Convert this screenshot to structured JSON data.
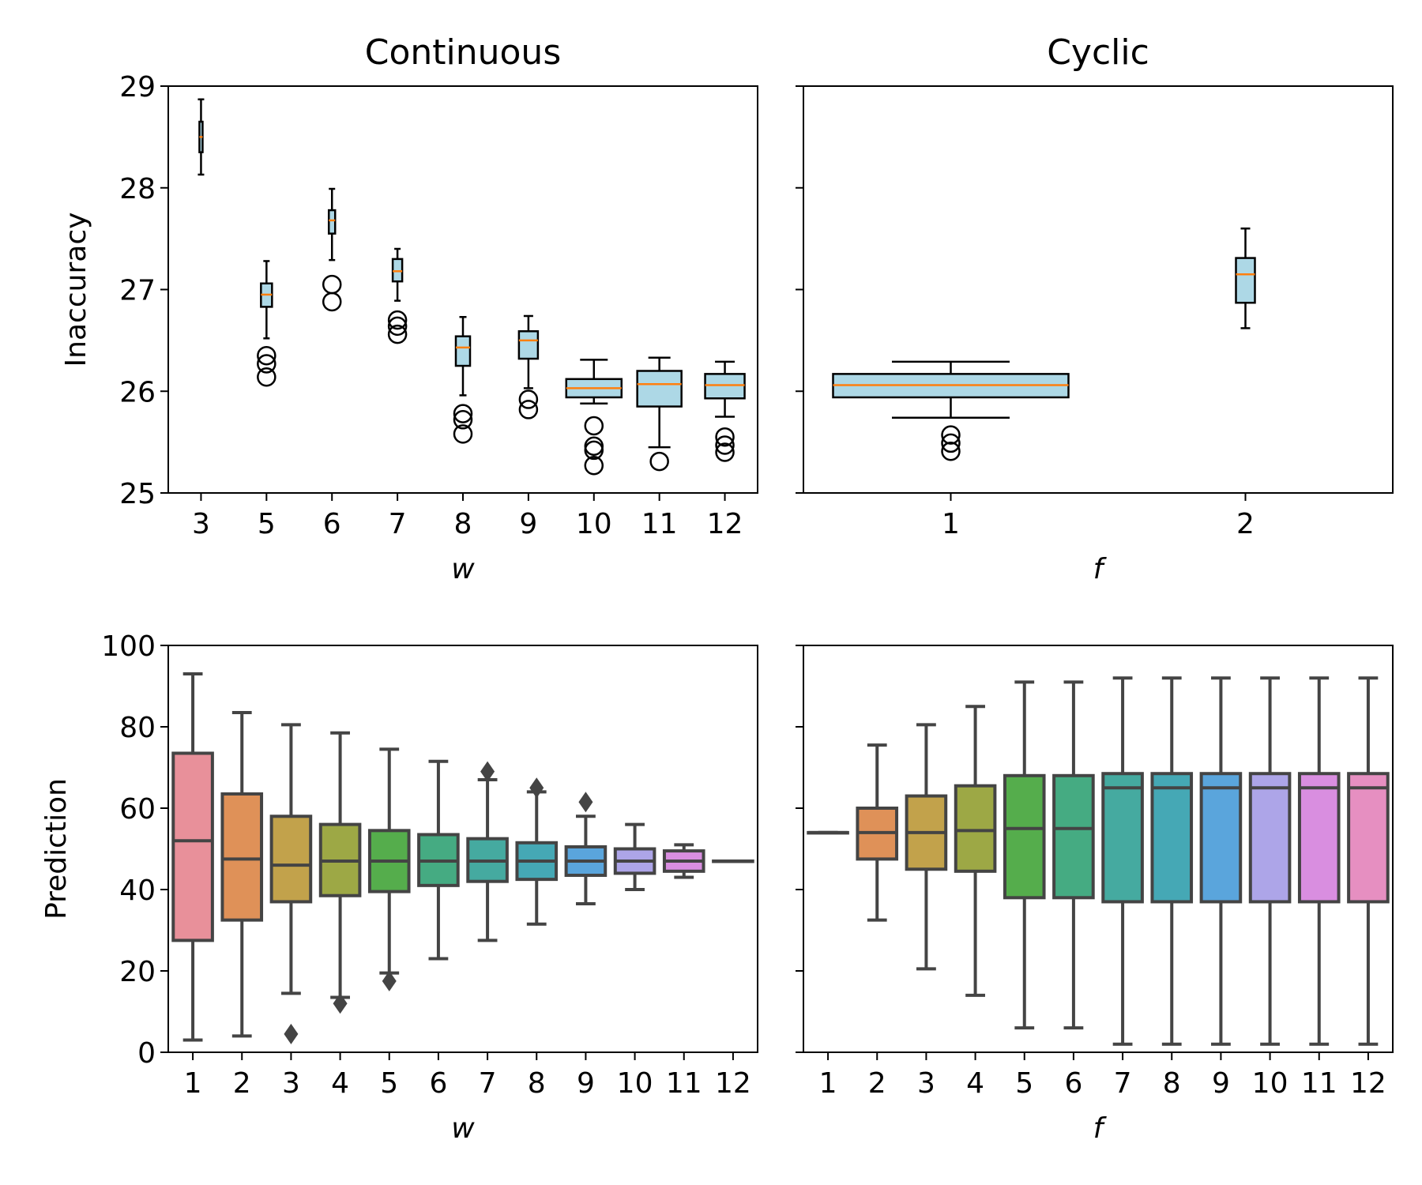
{
  "chart_data": [
    {
      "type": "box",
      "panel": "top-left",
      "title": "Continuous",
      "xlabel": "w",
      "ylabel": "Inaccuracy",
      "ylim": [
        25,
        29
      ],
      "yticks": [
        25,
        26,
        27,
        28,
        29
      ],
      "box_color": "#add8e6",
      "median_color": "#ff7f0e",
      "categories": [
        "3",
        "5",
        "6",
        "7",
        "8",
        "9",
        "10",
        "11",
        "12"
      ],
      "boxes": [
        {
          "q1": 28.35,
          "median": 28.5,
          "q3": 28.65,
          "whislo": 28.13,
          "whishi": 28.87,
          "fliers": []
        },
        {
          "q1": 26.83,
          "median": 26.95,
          "q3": 27.06,
          "whislo": 26.52,
          "whishi": 27.28,
          "fliers": [
            26.35,
            26.27,
            26.14
          ]
        },
        {
          "q1": 27.55,
          "median": 27.68,
          "q3": 27.78,
          "whislo": 27.29,
          "whishi": 27.99,
          "fliers": [
            27.05,
            26.88
          ]
        },
        {
          "q1": 27.08,
          "median": 27.18,
          "q3": 27.3,
          "whislo": 26.89,
          "whishi": 27.4,
          "fliers": [
            26.7,
            26.64,
            26.56
          ]
        },
        {
          "q1": 26.25,
          "median": 26.43,
          "q3": 26.54,
          "whislo": 25.96,
          "whishi": 26.73,
          "fliers": [
            25.78,
            25.72,
            25.58
          ]
        },
        {
          "q1": 26.32,
          "median": 26.5,
          "q3": 26.59,
          "whislo": 26.03,
          "whishi": 26.74,
          "fliers": [
            25.92,
            25.82
          ]
        },
        {
          "q1": 25.94,
          "median": 26.03,
          "q3": 26.12,
          "whislo": 25.88,
          "whishi": 26.31,
          "fliers": [
            25.66,
            25.46,
            25.42,
            25.27
          ]
        },
        {
          "q1": 25.85,
          "median": 26.07,
          "q3": 26.2,
          "whislo": 25.45,
          "whishi": 26.33,
          "fliers": [
            25.31
          ]
        },
        {
          "q1": 25.93,
          "median": 26.06,
          "q3": 26.17,
          "whislo": 25.75,
          "whishi": 26.29,
          "fliers": [
            25.55,
            25.47,
            25.4
          ]
        }
      ]
    },
    {
      "type": "box",
      "panel": "top-right",
      "title": "Cyclic",
      "xlabel": "f",
      "ylabel": "",
      "ylim": [
        25,
        29
      ],
      "yticks": [
        25,
        26,
        27,
        28,
        29
      ],
      "box_color": "#add8e6",
      "median_color": "#ff7f0e",
      "categories": [
        "1",
        "2"
      ],
      "boxes": [
        {
          "q1": 25.94,
          "median": 26.06,
          "q3": 26.17,
          "whislo": 25.74,
          "whishi": 26.29,
          "fliers": [
            25.57,
            25.49,
            25.41
          ]
        },
        {
          "q1": 26.87,
          "median": 27.15,
          "q3": 27.31,
          "whislo": 26.62,
          "whishi": 27.6,
          "fliers": []
        }
      ]
    },
    {
      "type": "box",
      "panel": "bottom-left",
      "title": "",
      "xlabel": "w",
      "ylabel": "Prediction",
      "ylim": [
        0,
        100
      ],
      "yticks": [
        0,
        20,
        40,
        60,
        80,
        100
      ],
      "line_color": "#444444",
      "categories": [
        "1",
        "2",
        "3",
        "4",
        "5",
        "6",
        "7",
        "8",
        "9",
        "10",
        "11",
        "12"
      ],
      "boxes": [
        {
          "q1": 27.5,
          "median": 52,
          "q3": 73.5,
          "whislo": 3,
          "whishi": 93,
          "fliers": [],
          "color": "#e8909a"
        },
        {
          "q1": 32.5,
          "median": 47.5,
          "q3": 63.5,
          "whislo": 4,
          "whishi": 83.5,
          "fliers": [],
          "color": "#df9158"
        },
        {
          "q1": 37,
          "median": 46,
          "q3": 58,
          "whislo": 14.5,
          "whishi": 80.5,
          "fliers": [
            4.5
          ],
          "color": "#c2a24b"
        },
        {
          "q1": 38.5,
          "median": 47,
          "q3": 56,
          "whislo": 13.5,
          "whishi": 78.5,
          "fliers": [
            12
          ],
          "color": "#9da845"
        },
        {
          "q1": 39.5,
          "median": 47,
          "q3": 54.5,
          "whislo": 19.5,
          "whishi": 74.5,
          "fliers": [
            17.5
          ],
          "color": "#55ad4c"
        },
        {
          "q1": 41,
          "median": 47,
          "q3": 53.5,
          "whislo": 23,
          "whishi": 71.5,
          "fliers": [],
          "color": "#45ab82"
        },
        {
          "q1": 42,
          "median": 47,
          "q3": 52.5,
          "whislo": 27.5,
          "whishi": 67,
          "fliers": [
            69
          ],
          "color": "#45aaa0"
        },
        {
          "q1": 42.5,
          "median": 47,
          "q3": 51.5,
          "whislo": 31.5,
          "whishi": 64,
          "fliers": [
            65
          ],
          "color": "#45a8b5"
        },
        {
          "q1": 43.5,
          "median": 47,
          "q3": 50.5,
          "whislo": 36.5,
          "whishi": 58,
          "fliers": [
            61.5
          ],
          "color": "#5aa5dc"
        },
        {
          "q1": 44,
          "median": 47,
          "q3": 50,
          "whislo": 40,
          "whishi": 56,
          "fliers": [],
          "color": "#ada5e8"
        },
        {
          "q1": 44.5,
          "median": 47,
          "q3": 49.5,
          "whislo": 43,
          "whishi": 51,
          "fliers": [],
          "color": "#d98ee0"
        },
        {
          "q1": 47,
          "median": 47,
          "q3": 47,
          "whislo": 47,
          "whishi": 47,
          "fliers": [],
          "color": "#e68fc1"
        }
      ]
    },
    {
      "type": "box",
      "panel": "bottom-right",
      "title": "",
      "xlabel": "f",
      "ylabel": "",
      "ylim": [
        0,
        100
      ],
      "yticks": [
        0,
        20,
        40,
        60,
        80,
        100
      ],
      "line_color": "#444444",
      "categories": [
        "1",
        "2",
        "3",
        "4",
        "5",
        "6",
        "7",
        "8",
        "9",
        "10",
        "11",
        "12"
      ],
      "boxes": [
        {
          "q1": 54,
          "median": 54,
          "q3": 54,
          "whislo": 54,
          "whishi": 54,
          "fliers": [],
          "color": "#e8909a"
        },
        {
          "q1": 47.5,
          "median": 54,
          "q3": 60,
          "whislo": 32.5,
          "whishi": 75.5,
          "fliers": [],
          "color": "#df9158"
        },
        {
          "q1": 45,
          "median": 54,
          "q3": 63,
          "whislo": 20.5,
          "whishi": 80.5,
          "fliers": [],
          "color": "#c2a24b"
        },
        {
          "q1": 44.5,
          "median": 54.5,
          "q3": 65.5,
          "whislo": 14,
          "whishi": 85,
          "fliers": [],
          "color": "#9da845"
        },
        {
          "q1": 38,
          "median": 55,
          "q3": 68,
          "whislo": 6,
          "whishi": 91,
          "fliers": [],
          "color": "#55ad4c"
        },
        {
          "q1": 38,
          "median": 55,
          "q3": 68,
          "whislo": 6,
          "whishi": 91,
          "fliers": [],
          "color": "#45ab82"
        },
        {
          "q1": 37,
          "median": 65,
          "q3": 68.5,
          "whislo": 2,
          "whishi": 92,
          "fliers": [],
          "color": "#45aaa0"
        },
        {
          "q1": 37,
          "median": 65,
          "q3": 68.5,
          "whislo": 2,
          "whishi": 92,
          "fliers": [],
          "color": "#45a8b5"
        },
        {
          "q1": 37,
          "median": 65,
          "q3": 68.5,
          "whislo": 2,
          "whishi": 92,
          "fliers": [],
          "color": "#5aa5dc"
        },
        {
          "q1": 37,
          "median": 65,
          "q3": 68.5,
          "whislo": 2,
          "whishi": 92,
          "fliers": [],
          "color": "#ada5e8"
        },
        {
          "q1": 37,
          "median": 65,
          "q3": 68.5,
          "whislo": 2,
          "whishi": 92,
          "fliers": [],
          "color": "#d98ee0"
        },
        {
          "q1": 37,
          "median": 65,
          "q3": 68.5,
          "whislo": 2,
          "whishi": 92,
          "fliers": [],
          "color": "#e68fc1"
        }
      ]
    }
  ]
}
